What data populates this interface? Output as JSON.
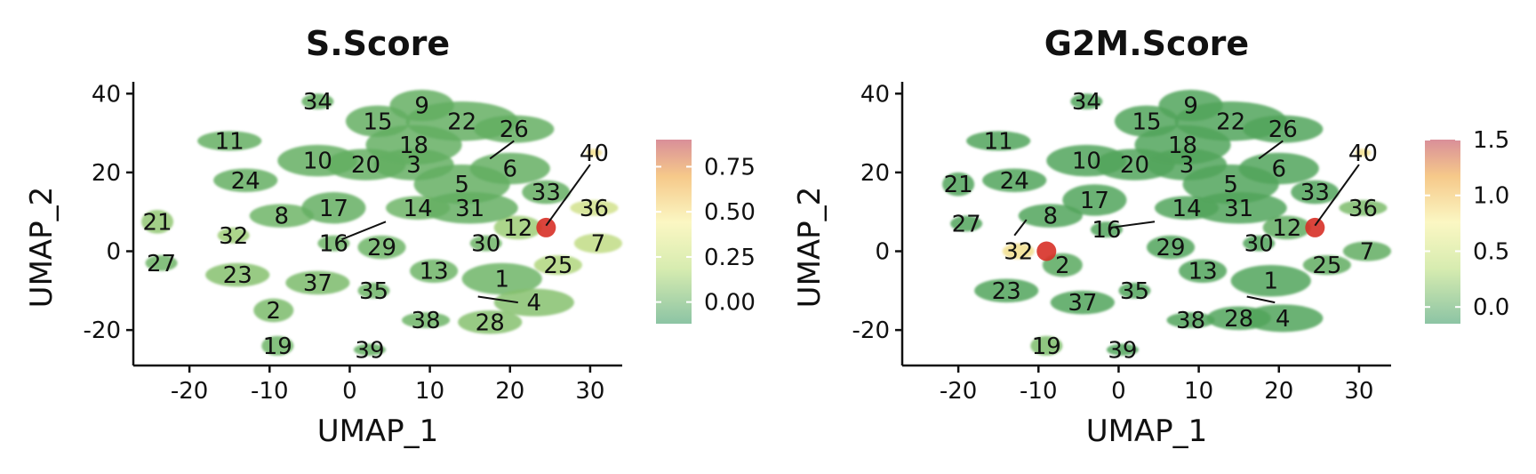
{
  "chart_data": [
    {
      "type": "scatter",
      "title": "S.Score",
      "xlabel": "UMAP_1",
      "ylabel": "UMAP_2",
      "xlim": [
        -27,
        34
      ],
      "ylim": [
        -29,
        43
      ],
      "xticks": [
        -20,
        -10,
        0,
        10,
        20,
        30
      ],
      "xtick_labels": [
        "-20",
        "-10",
        "0",
        "10",
        "20",
        "30"
      ],
      "yticks": [
        -20,
        0,
        20,
        40
      ],
      "ytick_labels": [
        "-20",
        "0",
        "20",
        "40"
      ],
      "grid": false,
      "color_scale": {
        "range": [
          -0.12,
          0.9
        ],
        "ticks": [
          0.0,
          0.25,
          0.5,
          0.75
        ],
        "tick_labels": [
          "0.00",
          "0.25",
          "0.50",
          "0.75"
        ],
        "colors": [
          "#8cc4a4",
          "#d7ecb0",
          "#fbf7c3",
          "#f6c98a",
          "#d98f99"
        ]
      },
      "clusters": [
        {
          "label": "1",
          "x": 19,
          "y": -7,
          "value": 0.1
        },
        {
          "label": "2",
          "x": -9.5,
          "y": -15,
          "value": 0.15
        },
        {
          "label": "3",
          "x": 8,
          "y": 22,
          "value": 0.05
        },
        {
          "label": "4",
          "x": 23,
          "y": -13,
          "value": 0.2
        },
        {
          "label": "5",
          "x": 14,
          "y": 17,
          "value": 0.05
        },
        {
          "label": "6",
          "x": 20,
          "y": 21,
          "value": 0.05
        },
        {
          "label": "7",
          "x": 31,
          "y": 2,
          "value": 0.5
        },
        {
          "label": "8",
          "x": -8.5,
          "y": 9,
          "value": 0.1
        },
        {
          "label": "9",
          "x": 9,
          "y": 37,
          "value": 0.05
        },
        {
          "label": "10",
          "x": -4,
          "y": 23,
          "value": 0.05
        },
        {
          "label": "11",
          "x": -15,
          "y": 28,
          "value": 0.05
        },
        {
          "label": "12",
          "x": 21,
          "y": 6,
          "value": 0.3
        },
        {
          "label": "13",
          "x": 10.5,
          "y": -5,
          "value": 0.1
        },
        {
          "label": "14",
          "x": 8.5,
          "y": 11,
          "value": 0.1
        },
        {
          "label": "15",
          "x": 3.5,
          "y": 33,
          "value": 0.05
        },
        {
          "label": "16",
          "x": -2,
          "y": 2,
          "value": 0.1
        },
        {
          "label": "17",
          "x": -2,
          "y": 11,
          "value": 0.05
        },
        {
          "label": "18",
          "x": 8,
          "y": 27,
          "value": 0.05
        },
        {
          "label": "19",
          "x": -9,
          "y": -24,
          "value": 0.1
        },
        {
          "label": "20",
          "x": 2,
          "y": 22,
          "value": 0.05
        },
        {
          "label": "21",
          "x": -24,
          "y": 7.5,
          "value": 0.25
        },
        {
          "label": "22",
          "x": 14,
          "y": 33,
          "value": 0.05
        },
        {
          "label": "23",
          "x": -14,
          "y": -6,
          "value": 0.2
        },
        {
          "label": "24",
          "x": -13,
          "y": 18,
          "value": 0.05
        },
        {
          "label": "25",
          "x": 26,
          "y": -3.5,
          "value": 0.4
        },
        {
          "label": "26",
          "x": 20.5,
          "y": 31,
          "value": 0.05
        },
        {
          "label": "27",
          "x": -23.5,
          "y": -3,
          "value": 0.1
        },
        {
          "label": "28",
          "x": 17.5,
          "y": -18,
          "value": 0.2
        },
        {
          "label": "29",
          "x": 4,
          "y": 1,
          "value": 0.1
        },
        {
          "label": "30",
          "x": 17,
          "y": 2,
          "value": 0.1
        },
        {
          "label": "31",
          "x": 15,
          "y": 11,
          "value": 0.05
        },
        {
          "label": "32",
          "x": -14.5,
          "y": 4,
          "value": 0.3
        },
        {
          "label": "33",
          "x": 24.5,
          "y": 15,
          "value": 0.05
        },
        {
          "label": "34",
          "x": -4,
          "y": 38,
          "value": 0.05
        },
        {
          "label": "35",
          "x": 3,
          "y": -10,
          "value": 0.1
        },
        {
          "label": "36",
          "x": 30.5,
          "y": 11,
          "value": 0.6
        },
        {
          "label": "37",
          "x": -4,
          "y": -8,
          "value": 0.15
        },
        {
          "label": "38",
          "x": 9.5,
          "y": -17.5,
          "value": 0.1
        },
        {
          "label": "39",
          "x": 2.5,
          "y": -25,
          "value": 0.05
        },
        {
          "label": "40",
          "x": 30.5,
          "y": 25,
          "value": 0.9
        }
      ]
    },
    {
      "type": "scatter",
      "title": "G2M.Score",
      "xlabel": "UMAP_1",
      "ylabel": "UMAP_2",
      "xlim": [
        -27,
        34
      ],
      "ylim": [
        -29,
        43
      ],
      "xticks": [
        -20,
        -10,
        0,
        10,
        20,
        30
      ],
      "xtick_labels": [
        "-20",
        "-10",
        "0",
        "10",
        "20",
        "30"
      ],
      "yticks": [
        -20,
        0,
        20,
        40
      ],
      "ytick_labels": [
        "-20",
        "0",
        "20",
        "40"
      ],
      "grid": false,
      "color_scale": {
        "range": [
          -0.15,
          1.5
        ],
        "ticks": [
          0.0,
          0.5,
          1.0,
          1.5
        ],
        "tick_labels": [
          "0.0",
          "0.5",
          "1.0",
          "1.5"
        ],
        "colors": [
          "#8cc4a4",
          "#d7ecb0",
          "#fbf7c3",
          "#f6c98a",
          "#d98f99"
        ]
      },
      "clusters": [
        {
          "label": "1",
          "x": 19,
          "y": -7.5,
          "value": 0.0
        },
        {
          "label": "2",
          "x": -7,
          "y": -3.5,
          "value": 0.05
        },
        {
          "label": "3",
          "x": 8.5,
          "y": 22,
          "value": 0.0
        },
        {
          "label": "4",
          "x": 20.5,
          "y": -17,
          "value": 0.0
        },
        {
          "label": "5",
          "x": 14,
          "y": 17,
          "value": 0.0
        },
        {
          "label": "6",
          "x": 20,
          "y": 21,
          "value": 0.0
        },
        {
          "label": "7",
          "x": 31,
          "y": 0,
          "value": 0.1
        },
        {
          "label": "8",
          "x": -8.5,
          "y": 9,
          "value": 0.0
        },
        {
          "label": "9",
          "x": 9,
          "y": 37,
          "value": 0.0
        },
        {
          "label": "10",
          "x": -4,
          "y": 23,
          "value": 0.0
        },
        {
          "label": "11",
          "x": -15,
          "y": 28,
          "value": 0.0
        },
        {
          "label": "12",
          "x": 21,
          "y": 6,
          "value": 0.1
        },
        {
          "label": "13",
          "x": 10.5,
          "y": -5,
          "value": 0.0
        },
        {
          "label": "14",
          "x": 8.5,
          "y": 11,
          "value": 0.0
        },
        {
          "label": "15",
          "x": 3.5,
          "y": 33,
          "value": 0.0
        },
        {
          "label": "16",
          "x": -1.5,
          "y": 5.5,
          "value": 0.0
        },
        {
          "label": "17",
          "x": -3,
          "y": 13,
          "value": 0.0
        },
        {
          "label": "18",
          "x": 8,
          "y": 27,
          "value": 0.0
        },
        {
          "label": "19",
          "x": -9,
          "y": -24,
          "value": 0.3
        },
        {
          "label": "20",
          "x": 2,
          "y": 22,
          "value": 0.0
        },
        {
          "label": "21",
          "x": -20,
          "y": 17,
          "value": 0.0
        },
        {
          "label": "22",
          "x": 14,
          "y": 33,
          "value": 0.0
        },
        {
          "label": "23",
          "x": -14,
          "y": -10,
          "value": 0.0
        },
        {
          "label": "24",
          "x": -13,
          "y": 18,
          "value": 0.0
        },
        {
          "label": "25",
          "x": 26,
          "y": -3.5,
          "value": 0.1
        },
        {
          "label": "26",
          "x": 20.5,
          "y": 31,
          "value": 0.0
        },
        {
          "label": "27",
          "x": -19,
          "y": 7,
          "value": 0.0
        },
        {
          "label": "28",
          "x": 15,
          "y": -17,
          "value": 0.0
        },
        {
          "label": "29",
          "x": 6.5,
          "y": 1,
          "value": 0.0
        },
        {
          "label": "30",
          "x": 17.5,
          "y": 2,
          "value": 0.0
        },
        {
          "label": "31",
          "x": 15,
          "y": 11,
          "value": 0.0
        },
        {
          "label": "32",
          "x": -12.5,
          "y": 0,
          "value": 1.5
        },
        {
          "label": "33",
          "x": 24.5,
          "y": 15,
          "value": 0.0
        },
        {
          "label": "34",
          "x": -4,
          "y": 38,
          "value": 0.0
        },
        {
          "label": "35",
          "x": 2,
          "y": -10,
          "value": 0.0
        },
        {
          "label": "36",
          "x": 30.5,
          "y": 11,
          "value": 0.3
        },
        {
          "label": "37",
          "x": -4.5,
          "y": -13,
          "value": 0.0
        },
        {
          "label": "38",
          "x": 9,
          "y": -17.5,
          "value": 0.0
        },
        {
          "label": "39",
          "x": 0.5,
          "y": -25,
          "value": 0.0
        },
        {
          "label": "40",
          "x": 30.5,
          "y": 25,
          "value": 1.5
        }
      ]
    }
  ]
}
